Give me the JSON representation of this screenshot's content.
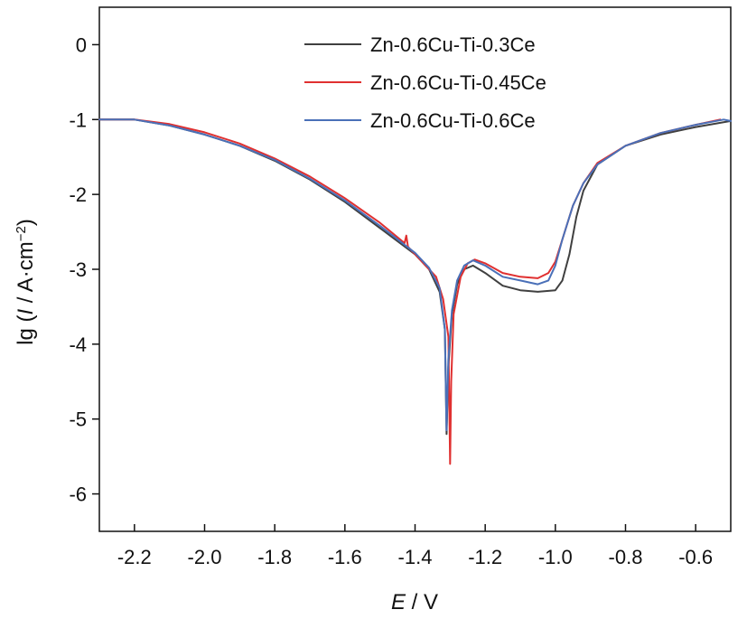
{
  "chart_data": {
    "type": "line",
    "xlabel_var": "E",
    "xlabel_unit": " / V",
    "ylabel_prefix": "lg (",
    "ylabel_var": "I",
    "ylabel_unit": " / A·cm",
    "ylabel_exp": "−2",
    "ylabel_suffix": ")",
    "xlim": [
      -2.3,
      -0.5
    ],
    "ylim": [
      -6.5,
      0.5
    ],
    "x_ticks": [
      -2.2,
      -2.0,
      -1.8,
      -1.6,
      -1.4,
      -1.2,
      -1.0,
      -0.8,
      -0.6
    ],
    "x_tick_labels": [
      "-2.2",
      "-2.0",
      "-1.8",
      "-1.6",
      "-1.4",
      "-1.2",
      "-1.0",
      "-0.8",
      "-0.6"
    ],
    "y_ticks": [
      0,
      -1,
      -2,
      -3,
      -4,
      -5,
      -6
    ],
    "y_tick_labels": [
      "0",
      "-1",
      "-2",
      "-3",
      "-4",
      "-5",
      "-6"
    ],
    "grid": false,
    "legend_position": "top-right",
    "series": [
      {
        "name": "Zn-0.6Cu-Ti-0.3Ce",
        "color": "#404040",
        "points": [
          [
            -2.3,
            -1.0
          ],
          [
            -2.2,
            -1.0
          ],
          [
            -2.1,
            -1.08
          ],
          [
            -2.0,
            -1.2
          ],
          [
            -1.9,
            -1.35
          ],
          [
            -1.8,
            -1.55
          ],
          [
            -1.7,
            -1.8
          ],
          [
            -1.6,
            -2.1
          ],
          [
            -1.5,
            -2.45
          ],
          [
            -1.4,
            -2.8
          ],
          [
            -1.36,
            -3.0
          ],
          [
            -1.33,
            -3.3
          ],
          [
            -1.315,
            -3.8
          ],
          [
            -1.31,
            -5.2
          ],
          [
            -1.305,
            -4.3
          ],
          [
            -1.295,
            -3.6
          ],
          [
            -1.28,
            -3.2
          ],
          [
            -1.26,
            -3.0
          ],
          [
            -1.235,
            -2.95
          ],
          [
            -1.2,
            -3.05
          ],
          [
            -1.15,
            -3.22
          ],
          [
            -1.1,
            -3.28
          ],
          [
            -1.05,
            -3.3
          ],
          [
            -1.0,
            -3.28
          ],
          [
            -0.98,
            -3.15
          ],
          [
            -0.96,
            -2.8
          ],
          [
            -0.94,
            -2.3
          ],
          [
            -0.92,
            -1.95
          ],
          [
            -0.88,
            -1.6
          ],
          [
            -0.8,
            -1.35
          ],
          [
            -0.7,
            -1.2
          ],
          [
            -0.6,
            -1.1
          ],
          [
            -0.5,
            -1.02
          ]
        ]
      },
      {
        "name": "Zn-0.6Cu-Ti-0.45Ce",
        "color": "#e03030",
        "points": [
          [
            -2.3,
            -1.0
          ],
          [
            -2.2,
            -1.0
          ],
          [
            -2.1,
            -1.06
          ],
          [
            -2.0,
            -1.17
          ],
          [
            -1.9,
            -1.32
          ],
          [
            -1.8,
            -1.52
          ],
          [
            -1.7,
            -1.76
          ],
          [
            -1.6,
            -2.05
          ],
          [
            -1.5,
            -2.38
          ],
          [
            -1.43,
            -2.65
          ],
          [
            -1.425,
            -2.55
          ],
          [
            -1.42,
            -2.7
          ],
          [
            -1.38,
            -2.9
          ],
          [
            -1.34,
            -3.1
          ],
          [
            -1.32,
            -3.4
          ],
          [
            -1.305,
            -3.9
          ],
          [
            -1.3,
            -5.6
          ],
          [
            -1.297,
            -4.5
          ],
          [
            -1.29,
            -3.6
          ],
          [
            -1.27,
            -3.1
          ],
          [
            -1.25,
            -2.92
          ],
          [
            -1.23,
            -2.87
          ],
          [
            -1.2,
            -2.92
          ],
          [
            -1.15,
            -3.05
          ],
          [
            -1.1,
            -3.1
          ],
          [
            -1.05,
            -3.12
          ],
          [
            -1.02,
            -3.05
          ],
          [
            -1.0,
            -2.9
          ],
          [
            -0.98,
            -2.6
          ],
          [
            -0.95,
            -2.15
          ],
          [
            -0.92,
            -1.85
          ],
          [
            -0.88,
            -1.58
          ],
          [
            -0.8,
            -1.35
          ],
          [
            -0.7,
            -1.18
          ],
          [
            -0.6,
            -1.07
          ],
          [
            -0.53,
            -1.0
          ]
        ]
      },
      {
        "name": "Zn-0.6Cu-Ti-0.6Ce",
        "color": "#4a70b8",
        "points": [
          [
            -2.3,
            -1.0
          ],
          [
            -2.2,
            -1.0
          ],
          [
            -2.1,
            -1.08
          ],
          [
            -2.0,
            -1.2
          ],
          [
            -1.9,
            -1.35
          ],
          [
            -1.8,
            -1.54
          ],
          [
            -1.7,
            -1.79
          ],
          [
            -1.6,
            -2.08
          ],
          [
            -1.5,
            -2.42
          ],
          [
            -1.4,
            -2.78
          ],
          [
            -1.36,
            -2.98
          ],
          [
            -1.33,
            -3.25
          ],
          [
            -1.315,
            -3.8
          ],
          [
            -1.31,
            -5.15
          ],
          [
            -1.305,
            -4.2
          ],
          [
            -1.295,
            -3.55
          ],
          [
            -1.28,
            -3.15
          ],
          [
            -1.26,
            -2.95
          ],
          [
            -1.235,
            -2.88
          ],
          [
            -1.2,
            -2.95
          ],
          [
            -1.15,
            -3.1
          ],
          [
            -1.1,
            -3.15
          ],
          [
            -1.05,
            -3.2
          ],
          [
            -1.02,
            -3.15
          ],
          [
            -1.0,
            -2.95
          ],
          [
            -0.98,
            -2.6
          ],
          [
            -0.95,
            -2.15
          ],
          [
            -0.92,
            -1.85
          ],
          [
            -0.88,
            -1.6
          ],
          [
            -0.8,
            -1.35
          ],
          [
            -0.7,
            -1.18
          ],
          [
            -0.6,
            -1.07
          ],
          [
            -0.52,
            -1.0
          ],
          [
            -0.5,
            -1.02
          ]
        ]
      }
    ]
  }
}
